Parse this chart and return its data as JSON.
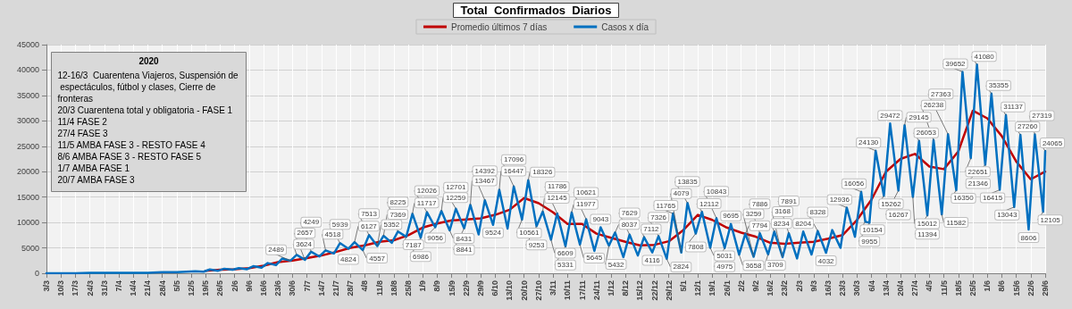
{
  "chart_data": {
    "type": "line",
    "title": "Total  Confirmados  Diarios",
    "legend": "top",
    "grid": true,
    "marker": "none",
    "line_style": "solid",
    "data_labels": false,
    "annotations": [
      "2020",
      "12-16/3  Cuarentena Viajeros, Suspensión de espectáculos, fútbol y clases, Cierre de fronteras",
      "20/3 Cuarentena total y obligatoria - FASE 1",
      "11/4 FASE 2",
      "27/4 FASE 3",
      "11/5 AMBA FASE 3 - RESTO FASE 4",
      "8/6 AMBA FASE 3 - RESTO FASE 5",
      "1/7 AMBA FASE 1",
      "20/7 AMBA FASE 3"
    ],
    "xlim": [
      "2020-03-03",
      "2021-06-29"
    ],
    "ylim": [
      0,
      45000
    ],
    "yticks": [
      0,
      5000,
      10000,
      15000,
      20000,
      25000,
      30000,
      35000,
      40000,
      45000
    ],
    "xticks": [
      {
        "value": "2020-03-03",
        "label": "3/3"
      },
      {
        "value": "2020-03-10",
        "label": "10/3"
      },
      {
        "value": "2020-03-17",
        "label": "17/3"
      },
      {
        "value": "2020-03-24",
        "label": "24/3"
      },
      {
        "value": "2020-03-31",
        "label": "31/3"
      },
      {
        "value": "2020-04-07",
        "label": "7/4"
      },
      {
        "value": "2020-04-14",
        "label": "14/4"
      },
      {
        "value": "2020-04-21",
        "label": "21/4"
      },
      {
        "value": "2020-04-28",
        "label": "28/4"
      },
      {
        "value": "2020-05-05",
        "label": "5/5"
      },
      {
        "value": "2020-05-12",
        "label": "12/5"
      },
      {
        "value": "2020-05-19",
        "label": "19/5"
      },
      {
        "value": "2020-05-26",
        "label": "26/5"
      },
      {
        "value": "2020-06-02",
        "label": "2/6"
      },
      {
        "value": "2020-06-09",
        "label": "9/6"
      },
      {
        "value": "2020-06-16",
        "label": "16/6"
      },
      {
        "value": "2020-06-23",
        "label": "23/6"
      },
      {
        "value": "2020-06-30",
        "label": "30/6"
      },
      {
        "value": "2020-07-07",
        "label": "7/7"
      },
      {
        "value": "2020-07-14",
        "label": "14/7"
      },
      {
        "value": "2020-07-21",
        "label": "21/7"
      },
      {
        "value": "2020-07-28",
        "label": "28/7"
      },
      {
        "value": "2020-08-04",
        "label": "4/8"
      },
      {
        "value": "2020-08-11",
        "label": "11/8"
      },
      {
        "value": "2020-08-18",
        "label": "18/8"
      },
      {
        "value": "2020-08-25",
        "label": "25/8"
      },
      {
        "value": "2020-09-01",
        "label": "1/9"
      },
      {
        "value": "2020-09-08",
        "label": "8/9"
      },
      {
        "value": "2020-09-15",
        "label": "15/9"
      },
      {
        "value": "2020-09-22",
        "label": "22/9"
      },
      {
        "value": "2020-09-29",
        "label": "29/9"
      },
      {
        "value": "2020-10-06",
        "label": "6/10"
      },
      {
        "value": "2020-10-13",
        "label": "13/10"
      },
      {
        "value": "2020-10-20",
        "label": "20/10"
      },
      {
        "value": "2020-10-27",
        "label": "27/10"
      },
      {
        "value": "2020-11-03",
        "label": "3/11"
      },
      {
        "value": "2020-11-10",
        "label": "10/11"
      },
      {
        "value": "2020-11-17",
        "label": "17/11"
      },
      {
        "value": "2020-11-24",
        "label": "24/11"
      },
      {
        "value": "2020-12-01",
        "label": "1/12"
      },
      {
        "value": "2020-12-08",
        "label": "8/12"
      },
      {
        "value": "2020-12-15",
        "label": "15/12"
      },
      {
        "value": "2020-12-22",
        "label": "22/12"
      },
      {
        "value": "2020-12-29",
        "label": "29/12"
      },
      {
        "value": "2021-01-05",
        "label": "5/1"
      },
      {
        "value": "2021-01-12",
        "label": "12/1"
      },
      {
        "value": "2021-01-19",
        "label": "19/1"
      },
      {
        "value": "2021-01-26",
        "label": "26/1"
      },
      {
        "value": "2021-02-02",
        "label": "2/2"
      },
      {
        "value": "2021-02-09",
        "label": "9/2"
      },
      {
        "value": "2021-02-16",
        "label": "16/2"
      },
      {
        "value": "2021-02-23",
        "label": "23/2"
      },
      {
        "value": "2021-03-02",
        "label": "2/3"
      },
      {
        "value": "2021-03-09",
        "label": "9/3"
      },
      {
        "value": "2021-03-16",
        "label": "16/3"
      },
      {
        "value": "2021-03-23",
        "label": "23/3"
      },
      {
        "value": "2021-03-30",
        "label": "30/3"
      },
      {
        "value": "2021-04-06",
        "label": "6/4"
      },
      {
        "value": "2021-04-13",
        "label": "13/4"
      },
      {
        "value": "2021-04-20",
        "label": "20/4"
      },
      {
        "value": "2021-04-27",
        "label": "27/4"
      },
      {
        "value": "2021-05-04",
        "label": "4/5"
      },
      {
        "value": "2021-05-11",
        "label": "11/5"
      },
      {
        "value": "2021-05-18",
        "label": "18/5"
      },
      {
        "value": "2021-05-25",
        "label": "25/5"
      },
      {
        "value": "2021-06-01",
        "label": "1/6"
      },
      {
        "value": "2021-06-08",
        "label": "8/6"
      },
      {
        "value": "2021-06-15",
        "label": "15/6"
      },
      {
        "value": "2021-06-22",
        "label": "22/6"
      },
      {
        "value": "2021-06-29",
        "label": "29/6"
      }
    ],
    "series": [
      {
        "name": "Promedio últimos 7 días",
        "color": "#c00000",
        "x": [
          "2020-05-19",
          "2020-05-26",
          "2020-06-02",
          "2020-06-09",
          "2020-06-16",
          "2020-06-23",
          "2020-06-30",
          "2020-07-07",
          "2020-07-14",
          "2020-07-21",
          "2020-07-28",
          "2020-08-04",
          "2020-08-11",
          "2020-08-18",
          "2020-08-25",
          "2020-09-01",
          "2020-09-08",
          "2020-09-15",
          "2020-09-22",
          "2020-09-29",
          "2020-10-06",
          "2020-10-13",
          "2020-10-20",
          "2020-10-27",
          "2020-11-03",
          "2020-11-10",
          "2020-11-17",
          "2020-11-24",
          "2020-12-01",
          "2020-12-08",
          "2020-12-15",
          "2020-12-22",
          "2020-12-29",
          "2021-01-05",
          "2021-01-12",
          "2021-01-19",
          "2021-01-26",
          "2021-02-02",
          "2021-02-09",
          "2021-02-16",
          "2021-02-23",
          "2021-03-02",
          "2021-03-09",
          "2021-03-16",
          "2021-03-23",
          "2021-03-30",
          "2021-04-06",
          "2021-04-13",
          "2021-04-20",
          "2021-04-27",
          "2021-05-04",
          "2021-05-11",
          "2021-05-18",
          "2021-05-25",
          "2021-06-01",
          "2021-06-08",
          "2021-06-15",
          "2021-06-22",
          "2021-06-29"
        ],
        "values": [
          500,
          700,
          800,
          1000,
          1500,
          2200,
          2500,
          3000,
          3500,
          4200,
          5000,
          5500,
          6200,
          6500,
          7500,
          9000,
          9800,
          10400,
          10600,
          10800,
          11500,
          12500,
          14800,
          13800,
          12000,
          9700,
          9700,
          7800,
          7000,
          6200,
          5500,
          5600,
          6300,
          8500,
          11500,
          10500,
          9000,
          8000,
          7200,
          6000,
          5800,
          6000,
          6200,
          6800,
          7500,
          10500,
          14500,
          20000,
          22500,
          23500,
          21000,
          20500,
          24000,
          32000,
          30500,
          27000,
          22000,
          18500,
          20000
        ]
      },
      {
        "name": "Casos x día",
        "color": "#0070c0",
        "x": [
          "2020-03-03",
          "2020-03-10",
          "2020-03-17",
          "2020-03-24",
          "2020-03-31",
          "2020-04-07",
          "2020-04-14",
          "2020-04-21",
          "2020-04-28",
          "2020-05-05",
          "2020-05-14",
          "2020-05-18",
          "2020-05-21",
          "2020-05-25",
          "2020-05-28",
          "2020-06-01",
          "2020-06-04",
          "2020-06-08",
          "2020-06-11",
          "2020-06-15",
          "2020-06-18",
          "2020-06-22",
          "2020-06-25",
          "2020-06-29",
          "2020-07-02",
          "2020-07-06",
          "2020-07-09",
          "2020-07-13",
          "2020-07-16",
          "2020-07-20",
          "2020-07-23",
          "2020-07-27",
          "2020-07-30",
          "2020-08-03",
          "2020-08-06",
          "2020-08-10",
          "2020-08-13",
          "2020-08-17",
          "2020-08-20",
          "2020-08-24",
          "2020-08-27",
          "2020-08-31",
          "2020-09-03",
          "2020-09-07",
          "2020-09-10",
          "2020-09-14",
          "2020-09-17",
          "2020-09-21",
          "2020-09-24",
          "2020-09-28",
          "2020-10-01",
          "2020-10-05",
          "2020-10-08",
          "2020-10-12",
          "2020-10-15",
          "2020-10-19",
          "2020-10-22",
          "2020-10-26",
          "2020-10-29",
          "2020-11-02",
          "2020-11-05",
          "2020-11-09",
          "2020-11-12",
          "2020-11-16",
          "2020-11-19",
          "2020-11-23",
          "2020-11-26",
          "2020-11-30",
          "2020-12-03",
          "2020-12-07",
          "2020-12-10",
          "2020-12-14",
          "2020-12-17",
          "2020-12-21",
          "2020-12-24",
          "2020-12-28",
          "2020-12-31",
          "2021-01-04",
          "2021-01-07",
          "2021-01-11",
          "2021-01-14",
          "2021-01-18",
          "2021-01-21",
          "2021-01-25",
          "2021-01-28",
          "2021-02-01",
          "2021-02-04",
          "2021-02-08",
          "2021-02-11",
          "2021-02-15",
          "2021-02-18",
          "2021-02-22",
          "2021-02-25",
          "2021-03-01",
          "2021-03-04",
          "2021-03-08",
          "2021-03-11",
          "2021-03-15",
          "2021-03-18",
          "2021-03-22",
          "2021-03-25",
          "2021-03-29",
          "2021-04-01",
          "2021-04-03",
          "2021-04-05",
          "2021-04-08",
          "2021-04-12",
          "2021-04-15",
          "2021-04-19",
          "2021-04-22",
          "2021-04-26",
          "2021-04-29",
          "2021-05-03",
          "2021-05-06",
          "2021-05-10",
          "2021-05-13",
          "2021-05-17",
          "2021-05-20",
          "2021-05-24",
          "2021-05-27",
          "2021-05-31",
          "2021-06-03",
          "2021-06-07",
          "2021-06-10",
          "2021-06-14",
          "2021-06-17",
          "2021-06-21",
          "2021-06-24",
          "2021-06-28",
          "2021-06-29"
        ],
        "values": [
          0,
          0,
          0,
          100,
          100,
          100,
          100,
          100,
          200,
          200,
          400,
          300,
          750,
          500,
          900,
          700,
          1000,
          800,
          1400,
          1100,
          2000,
          1600,
          2900,
          2489,
          3624,
          2657,
          4249,
          3300,
          4518,
          3900,
          5939,
          4824,
          6127,
          4557,
          7513,
          5352,
          7369,
          6000,
          8225,
          7187,
          11717,
          6986,
          12026,
          9056,
          12259,
          8431,
          12701,
          8841,
          13467,
          7660,
          14392,
          9524,
          16447,
          8800,
          17096,
          10561,
          18326,
          9253,
          12145,
          6609,
          11786,
          5331,
          11977,
          5645,
          10621,
          4400,
          9043,
          5432,
          8037,
          3190,
          7629,
          3500,
          7112,
          4116,
          7326,
          2824,
          11765,
          4079,
          13835,
          7808,
          12112,
          5031,
          10843,
          4975,
          9695,
          3658,
          7794,
          3259,
          7886,
          3709,
          8234,
          3168,
          7891,
          2920,
          8204,
          3697,
          8328,
          4032,
          8500,
          5000,
          12936,
          7200,
          16056,
          10154,
          9955,
          24130,
          15262,
          29472,
          16267,
          29145,
          15012,
          26053,
          11394,
          26238,
          11582,
          27363,
          16350,
          39652,
          22651,
          41080,
          21346,
          35355,
          16415,
          31137,
          13043,
          27260,
          8606,
          27319,
          12105,
          24065
        ],
        "value_labels": [
          null,
          null,
          null,
          null,
          null,
          null,
          null,
          null,
          null,
          null,
          null,
          null,
          null,
          null,
          null,
          null,
          null,
          null,
          null,
          null,
          null,
          null,
          null,
          "2489",
          "3624",
          "2657",
          "4249",
          null,
          "4518",
          null,
          "5939",
          "4824",
          "6127",
          "4557",
          "7513",
          "5352",
          "7369",
          null,
          "8225",
          "7187",
          "11717",
          "6986",
          "12026",
          "9056",
          "12259",
          "8431",
          "12701",
          "8841",
          "13467",
          null,
          "14392",
          "9524",
          "16447",
          null,
          "17096",
          "10561",
          "18326",
          "9253",
          "12145",
          "6609",
          "11786",
          "5331",
          "11977",
          "5645",
          "10621",
          null,
          "9043",
          "5432",
          "8037",
          null,
          "7629",
          null,
          "7112",
          "4116",
          "7326",
          "2824",
          "11765",
          "4079",
          "13835",
          "7808",
          "12112",
          "5031",
          "10843",
          "4975",
          "9695",
          "3658",
          "7794",
          "3259",
          "7886",
          "3709",
          "8234",
          "3168",
          "7891",
          null,
          "8204",
          null,
          "8328",
          "4032",
          null,
          null,
          "12936",
          null,
          "16056",
          "10154",
          "9955",
          "24130",
          "15262",
          "29472",
          "16267",
          "29145",
          "15012",
          "26053",
          "11394",
          "26238",
          "11582",
          "27363",
          "16350",
          "39652",
          "22651",
          "41080",
          "21346",
          "35355",
          "16415",
          "31137",
          "13043",
          "27260",
          "8606",
          "27319",
          "12105",
          "24065"
        ]
      }
    ]
  }
}
